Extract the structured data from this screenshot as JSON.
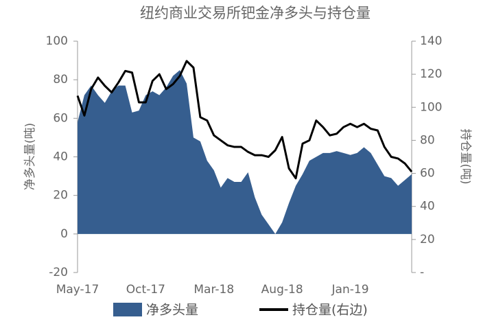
{
  "chart_data": {
    "type": "area-line",
    "title": "纽约商业交易所钯金净多头与持仓量",
    "y_label": "净多头量(吨)",
    "y2_label": "持仓量(吨)",
    "categories": [
      "May-17",
      null,
      null,
      null,
      null,
      null,
      null,
      null,
      null,
      null,
      "Oct-17",
      null,
      null,
      null,
      null,
      null,
      null,
      null,
      null,
      null,
      "Mar-18",
      null,
      null,
      null,
      null,
      null,
      null,
      null,
      null,
      null,
      "Aug-18",
      null,
      null,
      null,
      null,
      null,
      null,
      null,
      null,
      null,
      "Jan-19",
      null,
      null,
      null,
      null,
      null,
      null,
      null,
      null,
      null
    ],
    "series": [
      {
        "name": "净多头量",
        "color": "#365e8f",
        "kind": "area",
        "values": [
          58,
          72,
          77,
          72,
          68,
          74,
          77,
          77,
          63,
          64,
          72,
          74,
          72,
          76,
          82,
          85,
          78,
          50,
          48,
          38,
          33,
          24,
          29,
          27,
          27,
          32,
          19,
          10,
          5,
          0,
          6,
          16,
          25,
          31,
          38,
          40,
          42,
          42,
          43,
          42,
          41,
          42,
          45,
          42,
          36,
          30,
          29,
          25,
          28,
          31
        ]
      },
      {
        "name": "持仓量(右边)",
        "color": "#000000",
        "kind": "line",
        "axis": "y2",
        "values": [
          107,
          95,
          111,
          118,
          113,
          109,
          115,
          122,
          121,
          103,
          103,
          116,
          120,
          111,
          114,
          119,
          128,
          124,
          94,
          92,
          83,
          80,
          77,
          76,
          76,
          73,
          71,
          71,
          70,
          74,
          82,
          63,
          57,
          78,
          80,
          92,
          88,
          83,
          84,
          88,
          90,
          88,
          90,
          87,
          86,
          76,
          70,
          69,
          66,
          61
        ]
      }
    ],
    "ylim": [
      -20,
      100
    ],
    "yticks": [
      -20,
      0,
      20,
      40,
      60,
      80,
      100
    ],
    "y2lim": [
      0,
      140
    ],
    "y2ticks": [
      {
        "value": 0,
        "label": "-"
      },
      20,
      40,
      60,
      80,
      100,
      120,
      140
    ]
  }
}
